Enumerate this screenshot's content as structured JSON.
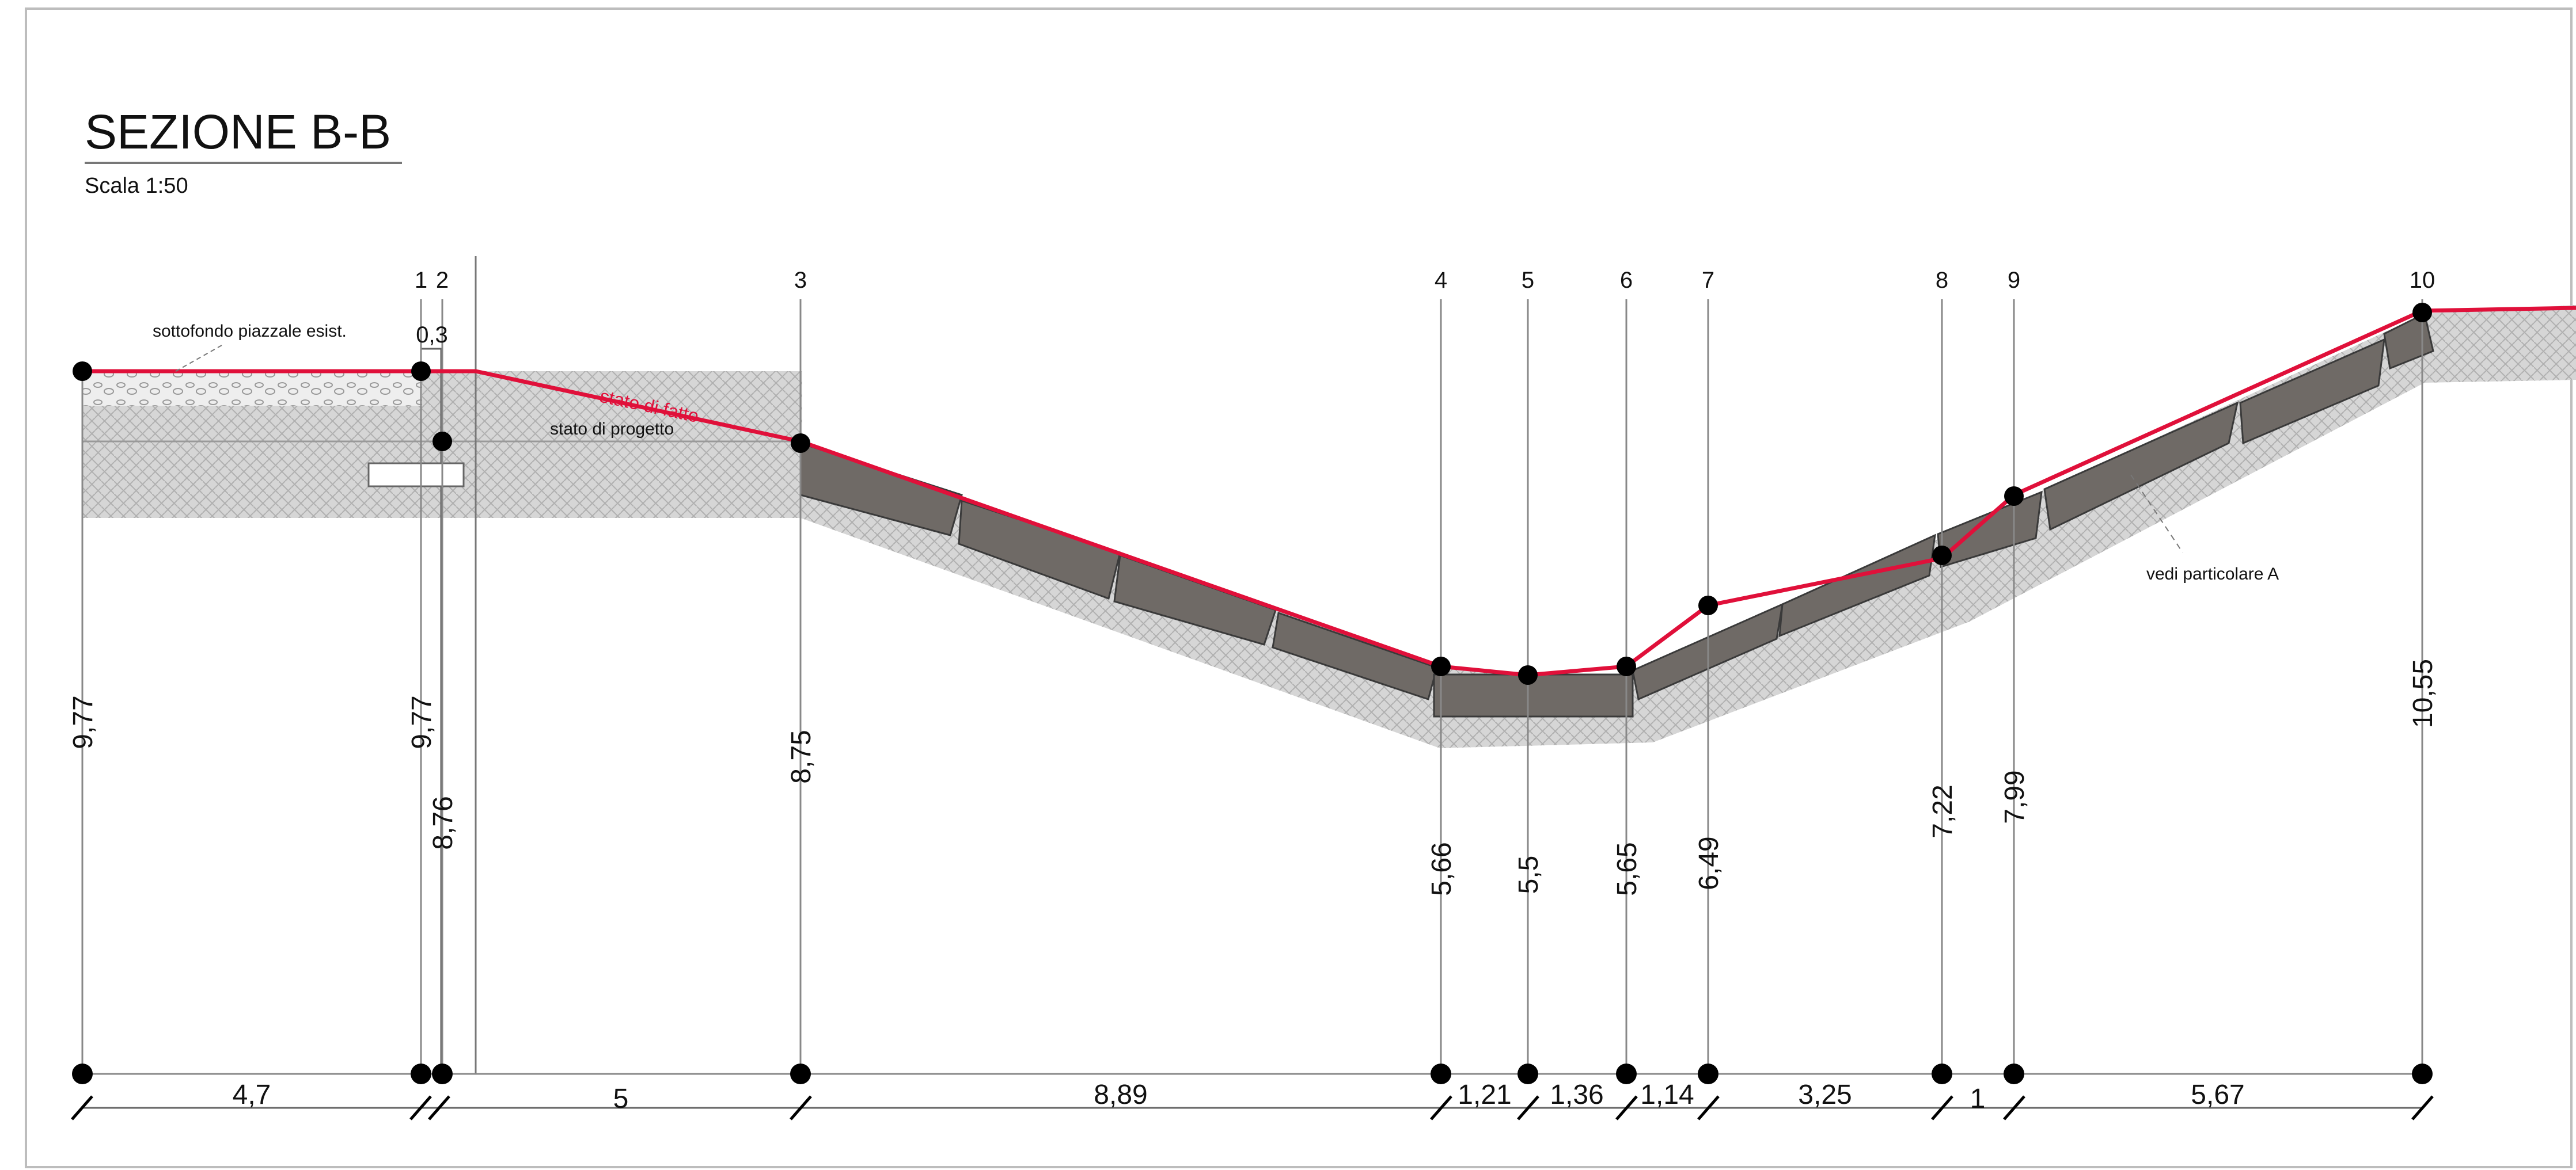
{
  "header": {
    "title": "SEZIONE B-B",
    "scale": "Scala 1:50"
  },
  "labels": {
    "subgrade": "sottofondo piazzale esist.",
    "existing_state": "stato di fatto",
    "project_state": "stato di progetto",
    "detail_ref": "vedi particolare A",
    "top_width": "0,3"
  },
  "colors": {
    "existing_line": "#e0103a",
    "gridline": "#777777",
    "block_fill": "#6f6a66",
    "soil_fill": "#c9c9c9",
    "point": "#000000"
  },
  "points": [
    {
      "id": "",
      "height": "9,77"
    },
    {
      "id": "1",
      "height": "9,77"
    },
    {
      "id": "2",
      "height": "8,76"
    },
    {
      "id": "3",
      "height": "8,75"
    },
    {
      "id": "4",
      "height": "5,66"
    },
    {
      "id": "5",
      "height": "5,5"
    },
    {
      "id": "6",
      "height": "5,65"
    },
    {
      "id": "7",
      "height": "6,49"
    },
    {
      "id": "8",
      "height": "7,22"
    },
    {
      "id": "9",
      "height": "7,99"
    },
    {
      "id": "10",
      "height": "10,55"
    }
  ],
  "distances": [
    "4,7",
    "5",
    "8,89",
    "1,21",
    "1,36",
    "1,14",
    "3,25",
    "1",
    "5,67"
  ]
}
